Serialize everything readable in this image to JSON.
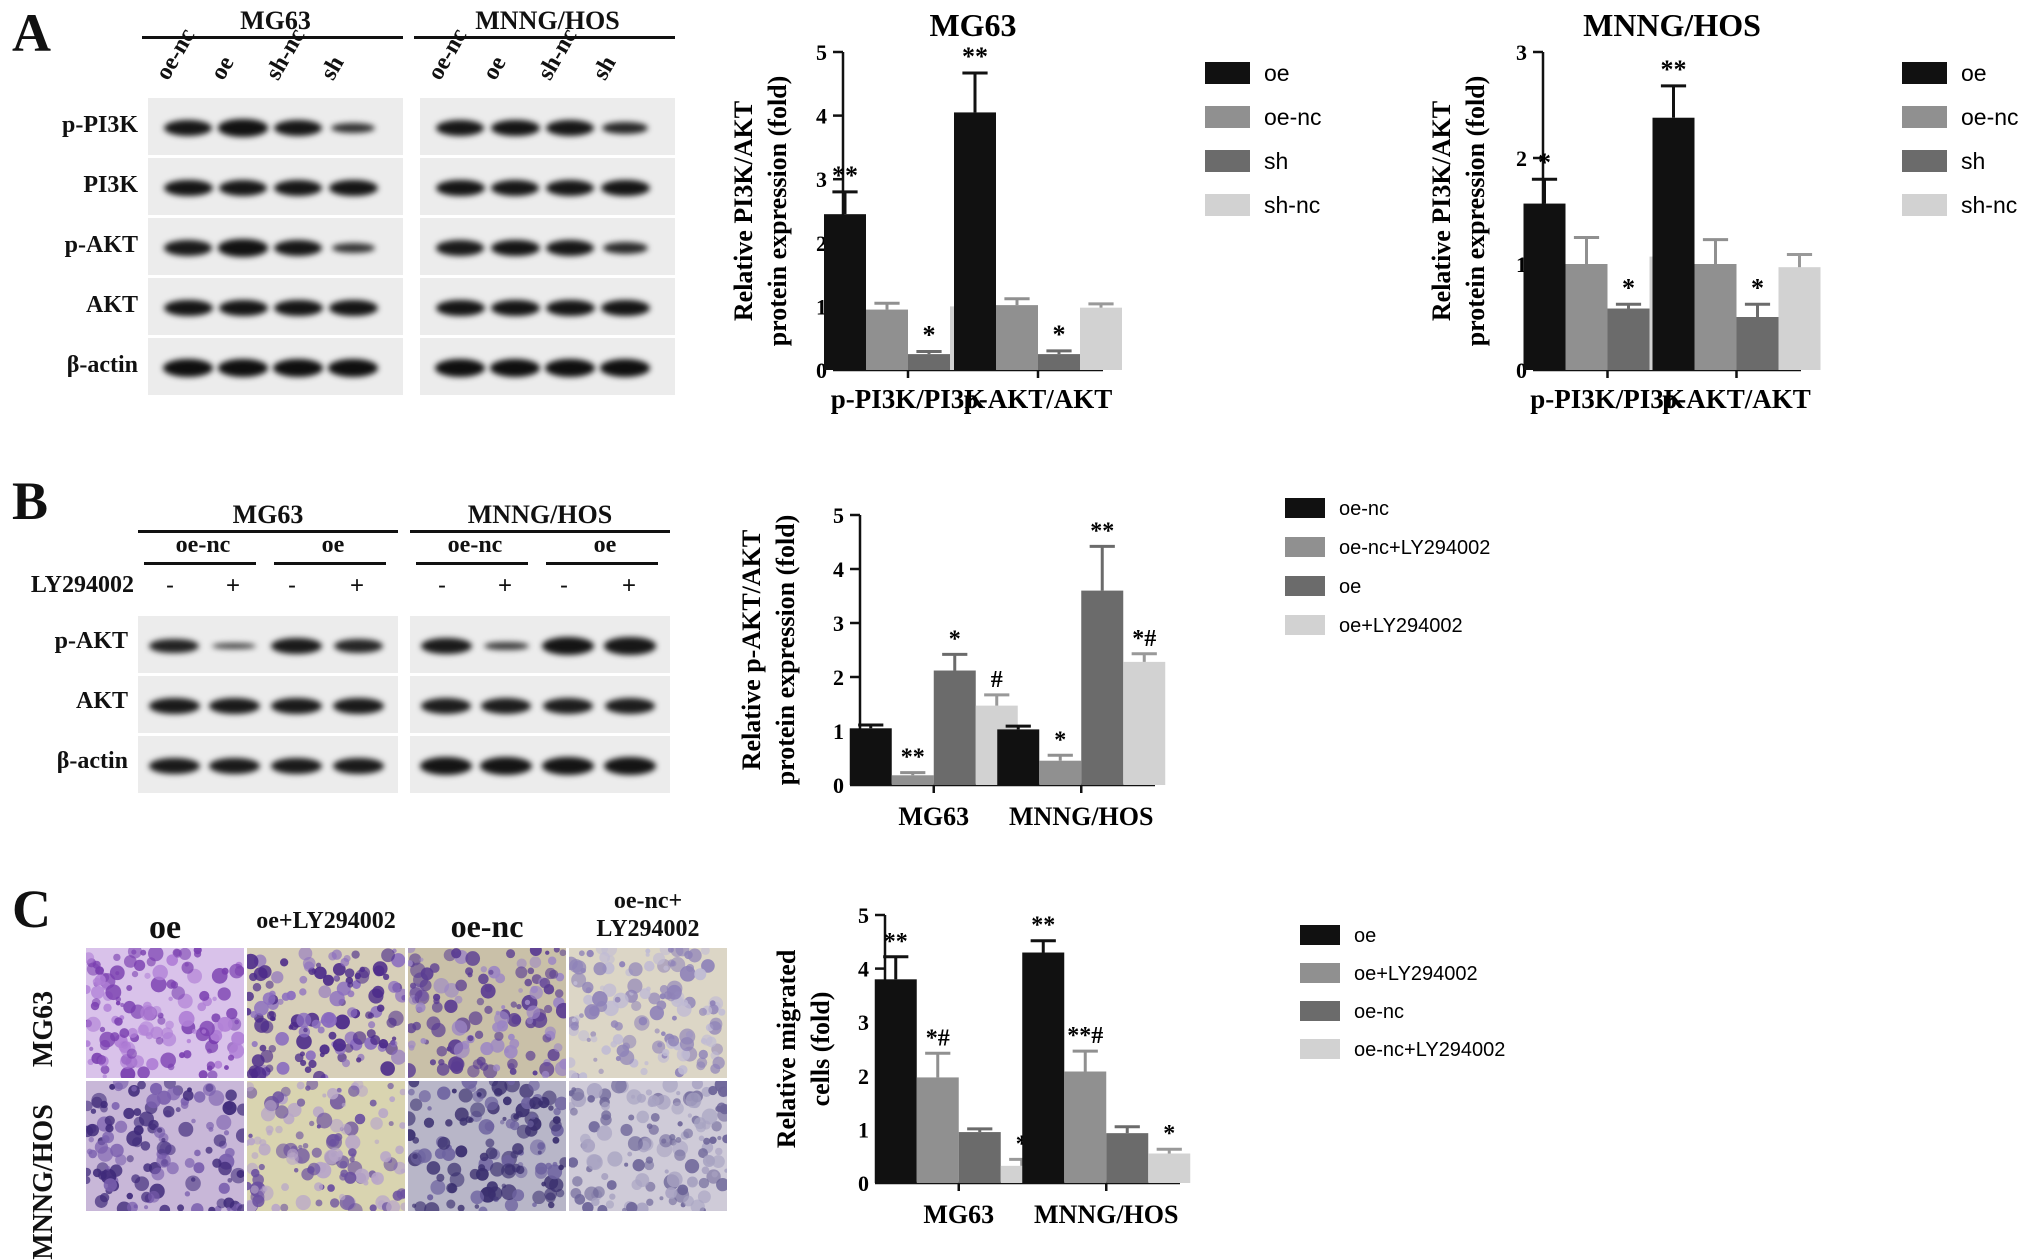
{
  "panels": {
    "A": {
      "letter": "A",
      "blot": {
        "groups": [
          {
            "name": "MG63",
            "lanes": [
              "oe-nc",
              "oe",
              "sh-nc",
              "sh"
            ]
          },
          {
            "name": "MNNG/HOS",
            "lanes": [
              "oe-nc",
              "oe",
              "sh-nc",
              "sh"
            ]
          }
        ],
        "rows": [
          "p-PI3K",
          "PI3K",
          "p-AKT",
          "AKT",
          "β-actin"
        ]
      }
    },
    "B": {
      "letter": "B",
      "blot": {
        "groups": [
          {
            "name": "MG63",
            "subgroups": [
              "oe-nc",
              "oe"
            ],
            "signs": [
              "-",
              "+",
              "-",
              "+"
            ]
          },
          {
            "name": "MNNG/HOS",
            "subgroups": [
              "oe-nc",
              "oe"
            ],
            "signs": [
              "-",
              "+",
              "-",
              "+"
            ]
          }
        ],
        "treatment_label": "LY294002",
        "rows": [
          "p-AKT",
          "AKT",
          "β-actin"
        ]
      }
    },
    "C": {
      "letter": "C",
      "photos": {
        "columns": [
          "oe",
          "oe+LY294002",
          "oe-nc",
          "oe-nc+\nLY294002"
        ],
        "rows": [
          "MG63",
          "MNNG/HOS"
        ]
      }
    }
  },
  "chart_data": [
    {
      "id": "A1",
      "type": "bar",
      "title": "MG63",
      "ylabel": "Relative PI3K/AKT\nprotein expression (fold)",
      "ylim": [
        0,
        5
      ],
      "yticks": [
        "0",
        "1",
        "2",
        "3",
        "4",
        "5"
      ],
      "categories": [
        "p-PI3K/PI3K",
        "p-AKT/AKT"
      ],
      "legend_position": "top-right",
      "series": [
        {
          "name": "oe",
          "color": "#111111",
          "values": [
            2.45,
            4.05
          ],
          "errors": [
            0.35,
            0.62
          ],
          "sig": [
            "**",
            "**"
          ]
        },
        {
          "name": "oe-nc",
          "color": "#909090",
          "values": [
            0.95,
            1.02
          ],
          "errors": [
            0.1,
            0.1
          ],
          "sig": [
            "",
            ""
          ]
        },
        {
          "name": "sh",
          "color": "#6b6b6b",
          "values": [
            0.25,
            0.25
          ],
          "errors": [
            0.04,
            0.05
          ],
          "sig": [
            "*",
            "*"
          ]
        },
        {
          "name": "sh-nc",
          "color": "#d2d2d2",
          "values": [
            1.0,
            0.98
          ],
          "errors": [
            0.1,
            0.06
          ],
          "sig": [
            "",
            ""
          ]
        }
      ]
    },
    {
      "id": "A2",
      "type": "bar",
      "title": "MNNG/HOS",
      "ylabel": "Relative PI3K/AKT\nprotein expression (fold)",
      "ylim": [
        0,
        3
      ],
      "yticks": [
        "0",
        "1",
        "2",
        "3"
      ],
      "categories": [
        "p-PI3K/PI3K",
        "p-AKT/AKT"
      ],
      "legend_position": "top-right",
      "series": [
        {
          "name": "oe",
          "color": "#111111",
          "values": [
            1.57,
            2.38
          ],
          "errors": [
            0.23,
            0.3
          ],
          "sig": [
            "*",
            "**"
          ]
        },
        {
          "name": "oe-nc",
          "color": "#909090",
          "values": [
            1.0,
            1.0
          ],
          "errors": [
            0.25,
            0.23
          ],
          "sig": [
            "",
            ""
          ]
        },
        {
          "name": "sh",
          "color": "#6b6b6b",
          "values": [
            0.58,
            0.5
          ],
          "errors": [
            0.04,
            0.12
          ],
          "sig": [
            "*",
            "*"
          ]
        },
        {
          "name": "sh-nc",
          "color": "#d2d2d2",
          "values": [
            1.07,
            0.97
          ],
          "errors": [
            0.1,
            0.12
          ],
          "sig": [
            "",
            ""
          ]
        }
      ]
    },
    {
      "id": "B",
      "type": "bar",
      "title": "",
      "ylabel": "Relative p-AKT/AKT\nprotein expression (fold)",
      "ylim": [
        0,
        5
      ],
      "yticks": [
        "0",
        "1",
        "2",
        "3",
        "4",
        "5"
      ],
      "categories": [
        "MG63",
        "MNNG/HOS"
      ],
      "legend_position": "right",
      "series": [
        {
          "name": "oe-nc",
          "color": "#111111",
          "values": [
            1.05,
            1.03
          ],
          "errors": [
            0.06,
            0.06
          ],
          "sig": [
            "",
            ""
          ]
        },
        {
          "name": "oe-nc+LY294002",
          "color": "#909090",
          "values": [
            0.18,
            0.45
          ],
          "errors": [
            0.05,
            0.1
          ],
          "sig": [
            "**",
            "*"
          ]
        },
        {
          "name": "oe",
          "color": "#6b6b6b",
          "values": [
            2.12,
            3.6
          ],
          "errors": [
            0.3,
            0.82
          ],
          "sig": [
            "*",
            "**"
          ]
        },
        {
          "name": "oe+LY294002",
          "color": "#d2d2d2",
          "values": [
            1.47,
            2.28
          ],
          "errors": [
            0.2,
            0.15
          ],
          "sig": [
            "#",
            "*#"
          ]
        }
      ]
    },
    {
      "id": "C",
      "type": "bar",
      "title": "",
      "ylabel": "Relative migrated\ncells (fold)",
      "ylim": [
        0,
        5
      ],
      "yticks": [
        "0",
        "1",
        "2",
        "3",
        "4",
        "5"
      ],
      "categories": [
        "MG63",
        "MNNG/HOS"
      ],
      "legend_position": "right",
      "series": [
        {
          "name": "oe",
          "color": "#111111",
          "values": [
            3.8,
            4.3
          ],
          "errors": [
            0.42,
            0.22
          ],
          "sig": [
            "**",
            "**"
          ]
        },
        {
          "name": "oe+LY294002",
          "color": "#909090",
          "values": [
            1.97,
            2.08
          ],
          "errors": [
            0.45,
            0.38
          ],
          "sig": [
            "*#",
            "**#"
          ]
        },
        {
          "name": "oe-nc",
          "color": "#6b6b6b",
          "values": [
            0.95,
            0.93
          ],
          "errors": [
            0.06,
            0.12
          ],
          "sig": [
            "",
            ""
          ]
        },
        {
          "name": "oe-nc+LY294002",
          "color": "#d2d2d2",
          "values": [
            0.32,
            0.55
          ],
          "errors": [
            0.12,
            0.08
          ],
          "sig": [
            "*",
            "*"
          ]
        }
      ]
    }
  ]
}
